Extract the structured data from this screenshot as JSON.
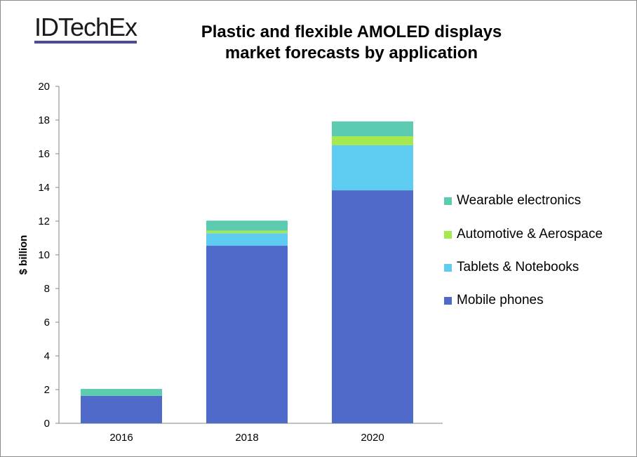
{
  "logo": "IDTechEx",
  "chart_data": {
    "type": "bar",
    "stacked": true,
    "title": "Plastic and flexible AMOLED displays market forecasts by application",
    "title_lines": [
      "Plastic and flexible AMOLED displays",
      "market forecasts by application"
    ],
    "xlabel": "",
    "ylabel": "$ billion",
    "ylim": [
      0,
      20
    ],
    "yticks": [
      0,
      2,
      4,
      6,
      8,
      10,
      12,
      14,
      16,
      18,
      20
    ],
    "categories": [
      "2016",
      "2018",
      "2020"
    ],
    "series": [
      {
        "name": "Mobile phones",
        "color": "#4f6ac8",
        "values": [
          1.63,
          10.54,
          13.83
        ]
      },
      {
        "name": "Tablets & Notebooks",
        "color": "#5ecbf0",
        "values": [
          0,
          0.74,
          2.67
        ]
      },
      {
        "name": "Automotive & Aerospace",
        "color": "#a6e84f",
        "values": [
          0,
          0.15,
          0.54
        ]
      },
      {
        "name": "Wearable electronics",
        "color": "#5ccbb0",
        "values": [
          0.41,
          0.6,
          0.88
        ]
      }
    ],
    "legend_position": "right",
    "grid": false
  }
}
